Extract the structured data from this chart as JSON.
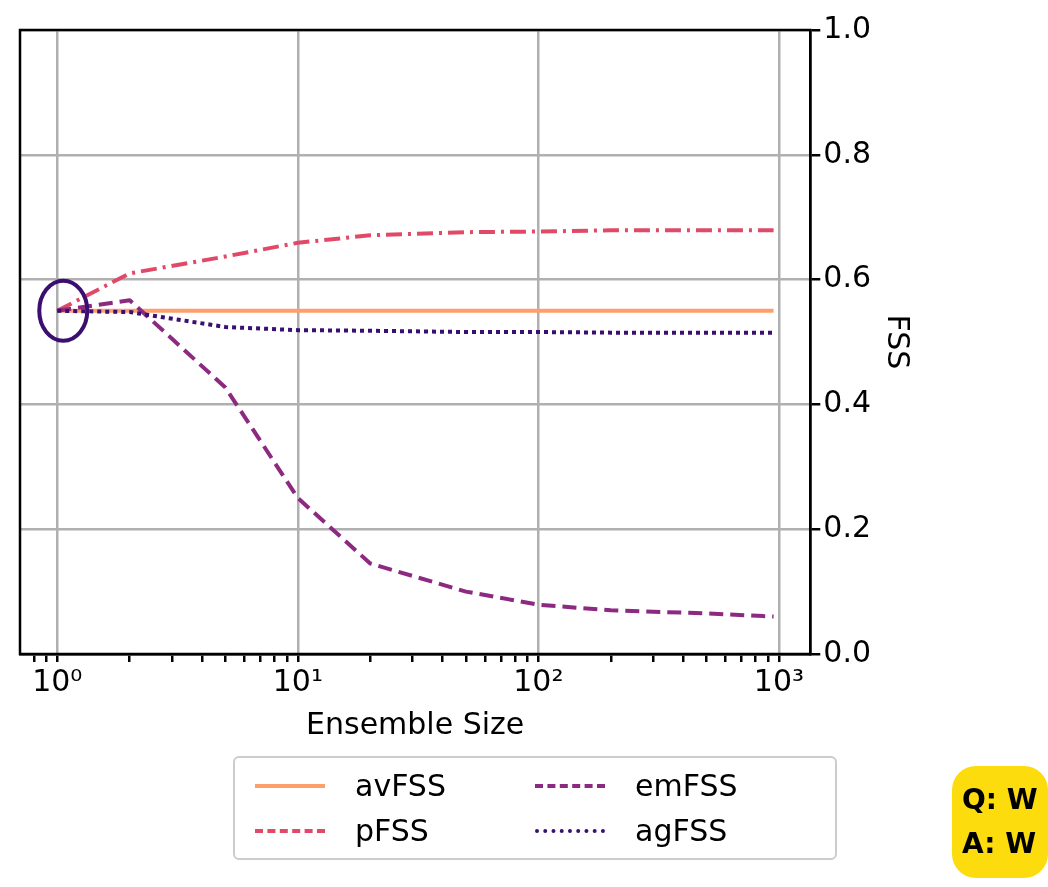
{
  "chart_data": {
    "type": "line",
    "xlabel": "Ensemble Size",
    "y2label": "FSS",
    "x": [
      1,
      2,
      5,
      10,
      20,
      50,
      100,
      200,
      500,
      950
    ],
    "series": [
      {
        "name": "avFSS",
        "axis": "y2",
        "color": "#fc9f6c",
        "line_style": "solid",
        "values": [
          0.55,
          0.55,
          0.55,
          0.55,
          0.55,
          0.55,
          0.55,
          0.55,
          0.55,
          0.55
        ]
      },
      {
        "name": "pFSS",
        "axis": "y2",
        "color": "#e04a68",
        "line_style": "dashdot",
        "values": [
          0.55,
          0.61,
          0.637,
          0.659,
          0.671,
          0.676,
          0.677,
          0.679,
          0.679,
          0.679
        ]
      },
      {
        "name": "emFSS",
        "axis": "y2",
        "color": "#8c2981",
        "line_style": "dashed",
        "values": [
          0.55,
          0.567,
          0.427,
          0.25,
          0.145,
          0.1,
          0.079,
          0.07,
          0.065,
          0.06
        ]
      },
      {
        "name": "agFSS",
        "axis": "y2",
        "color": "#3b0f70",
        "line_style": "dotted",
        "values": [
          0.55,
          0.548,
          0.524,
          0.519,
          0.518,
          0.516,
          0.516,
          0.515,
          0.515,
          0.515
        ]
      }
    ],
    "log": "x",
    "xlim": [
      0.71,
      1350
    ],
    "xticks": [
      {
        "value": 0.8,
        "label": null
      },
      {
        "value": 0.9,
        "label": null
      },
      {
        "value": 1,
        "label": "10⁰"
      },
      {
        "value": 2,
        "label": null
      },
      {
        "value": 3,
        "label": null
      },
      {
        "value": 4,
        "label": null
      },
      {
        "value": 5,
        "label": null
      },
      {
        "value": 6,
        "label": null
      },
      {
        "value": 7,
        "label": null
      },
      {
        "value": 8,
        "label": null
      },
      {
        "value": 9,
        "label": null
      },
      {
        "value": 10,
        "label": "10¹"
      },
      {
        "value": 20,
        "label": null
      },
      {
        "value": 30,
        "label": null
      },
      {
        "value": 40,
        "label": null
      },
      {
        "value": 50,
        "label": null
      },
      {
        "value": 60,
        "label": null
      },
      {
        "value": 70,
        "label": null
      },
      {
        "value": 80,
        "label": null
      },
      {
        "value": 90,
        "label": null
      },
      {
        "value": 100,
        "label": "10²"
      },
      {
        "value": 200,
        "label": null
      },
      {
        "value": 300,
        "label": null
      },
      {
        "value": 400,
        "label": null
      },
      {
        "value": 500,
        "label": null
      },
      {
        "value": 600,
        "label": null
      },
      {
        "value": 700,
        "label": null
      },
      {
        "value": 800,
        "label": null
      },
      {
        "value": 900,
        "label": null
      },
      {
        "value": 1000,
        "label": "10³"
      }
    ],
    "y2lim": [
      0,
      1
    ],
    "y2ticks": [
      {
        "value": 0,
        "label": "0.0"
      },
      {
        "value": 0.2,
        "label": "0.2"
      },
      {
        "value": 0.4,
        "label": "0.4"
      },
      {
        "value": 0.6,
        "label": "0.6"
      },
      {
        "value": 0.8,
        "label": "0.8"
      },
      {
        "value": 1,
        "label": "1.0"
      }
    ],
    "grid": true,
    "legend": "bottom",
    "annotations": [
      "Q: W",
      "A: W"
    ]
  }
}
